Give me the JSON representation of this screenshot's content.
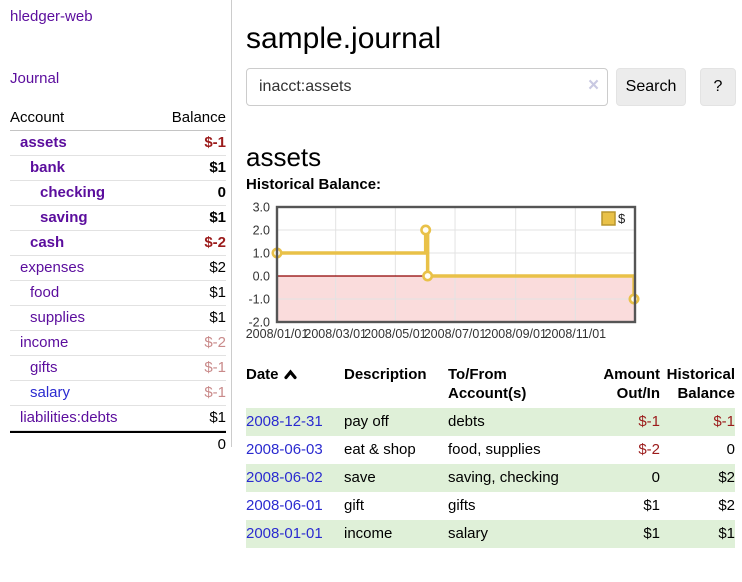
{
  "app": {
    "title": "hledger-web",
    "nav": {
      "journal": "Journal"
    }
  },
  "sidebar": {
    "header": {
      "account": "Account",
      "balance": "Balance"
    },
    "accounts": [
      {
        "name": "assets",
        "balance": "$-1",
        "indent": 1,
        "bold": true,
        "balance_color": "negative-strong"
      },
      {
        "name": "bank",
        "balance": "$1",
        "indent": 2,
        "bold": true,
        "balance_color": "normal"
      },
      {
        "name": "checking",
        "balance": "0",
        "indent": 3,
        "bold": true,
        "balance_color": "normal"
      },
      {
        "name": "saving",
        "balance": "$1",
        "indent": 3,
        "bold": true,
        "balance_color": "normal"
      },
      {
        "name": "cash",
        "balance": "$-2",
        "indent": 2,
        "bold": true,
        "balance_color": "negative-strong"
      },
      {
        "name": "expenses",
        "balance": "$2",
        "indent": 1,
        "bold": false,
        "balance_color": "normal"
      },
      {
        "name": "food",
        "balance": "$1",
        "indent": 2,
        "bold": false,
        "balance_color": "normal"
      },
      {
        "name": "supplies",
        "balance": "$1",
        "indent": 2,
        "bold": false,
        "balance_color": "normal"
      },
      {
        "name": "income",
        "balance": "$-2",
        "indent": 1,
        "bold": false,
        "balance_color": "negative-soft"
      },
      {
        "name": "gifts",
        "balance": "$-1",
        "indent": 2,
        "bold": false,
        "balance_color": "negative-soft"
      },
      {
        "name": "salary",
        "balance": "$-1",
        "indent": 2,
        "bold": false,
        "balance_color": "negative-soft",
        "link_color": "blue"
      },
      {
        "name": "liabilities:debts",
        "balance": "$1",
        "indent": 1,
        "bold": false,
        "balance_color": "normal"
      }
    ],
    "total": "0"
  },
  "main": {
    "title": "sample.journal",
    "search": {
      "value": "inacct:assets",
      "clear_icon": "×",
      "search_button": "Search",
      "help_button": "?"
    },
    "account_heading": "assets",
    "chart_title": "Historical Balance:"
  },
  "chart_data": {
    "type": "line",
    "step": true,
    "title": "Historical Balance:",
    "series": [
      {
        "name": "$",
        "points": [
          [
            "2008-01-01",
            1
          ],
          [
            "2008-06-01",
            2
          ],
          [
            "2008-06-03",
            0
          ],
          [
            "2008-12-31",
            -1
          ]
        ]
      }
    ],
    "x_range": [
      "2008-01-01",
      "2009-01-01"
    ],
    "x_ticks": [
      "2008/01/01",
      "2008/03/01",
      "2008/05/01",
      "2008/07/01",
      "2008/09/01",
      "2008/11/01"
    ],
    "y_ticks": [
      3.0,
      2.0,
      1.0,
      0.0,
      -1.0,
      -2.0
    ],
    "ylim": [
      -2,
      3
    ],
    "grid": true,
    "legend": {
      "label": "$",
      "position": "top-right"
    },
    "line_color": "#e9c148",
    "negative_region_fill": "#fadcdc",
    "zero_line_color": "#8f0000"
  },
  "transactions": {
    "columns": [
      "Date",
      "Description",
      "To/From Account(s)",
      "Amount Out/In",
      "Historical Balance"
    ],
    "rows": [
      {
        "date": "2008-12-31",
        "description": "pay off",
        "accounts": "debts",
        "amount": "$-1",
        "balance": "$-1",
        "amount_negative": true,
        "balance_negative": true
      },
      {
        "date": "2008-06-03",
        "description": "eat & shop",
        "accounts": "food, supplies",
        "amount": "$-2",
        "balance": "0",
        "amount_negative": true,
        "balance_negative": false
      },
      {
        "date": "2008-06-02",
        "description": "save",
        "accounts": "saving, checking",
        "amount": "0",
        "balance": "$2",
        "amount_negative": false,
        "balance_negative": false
      },
      {
        "date": "2008-06-01",
        "description": "gift",
        "accounts": "gifts",
        "amount": "$1",
        "balance": "$2",
        "amount_negative": false,
        "balance_negative": false
      },
      {
        "date": "2008-01-01",
        "description": "income",
        "accounts": "salary",
        "amount": "$1",
        "balance": "$1",
        "amount_negative": false,
        "balance_negative": false
      }
    ]
  },
  "colors": {
    "link_purple": "#5b0d9d",
    "link_blue": "#2b2bd0",
    "negative_strong": "#9b1b1b",
    "negative_soft": "#c98a8a",
    "table_row_green": "#dff0d8",
    "button_bg": "#ececec",
    "clear_icon_lavender": "#c9c9e2",
    "chart_line_gold": "#e9c148",
    "chart_negative_fill": "#fadcdc",
    "chart_zero_line": "#8f0000"
  }
}
